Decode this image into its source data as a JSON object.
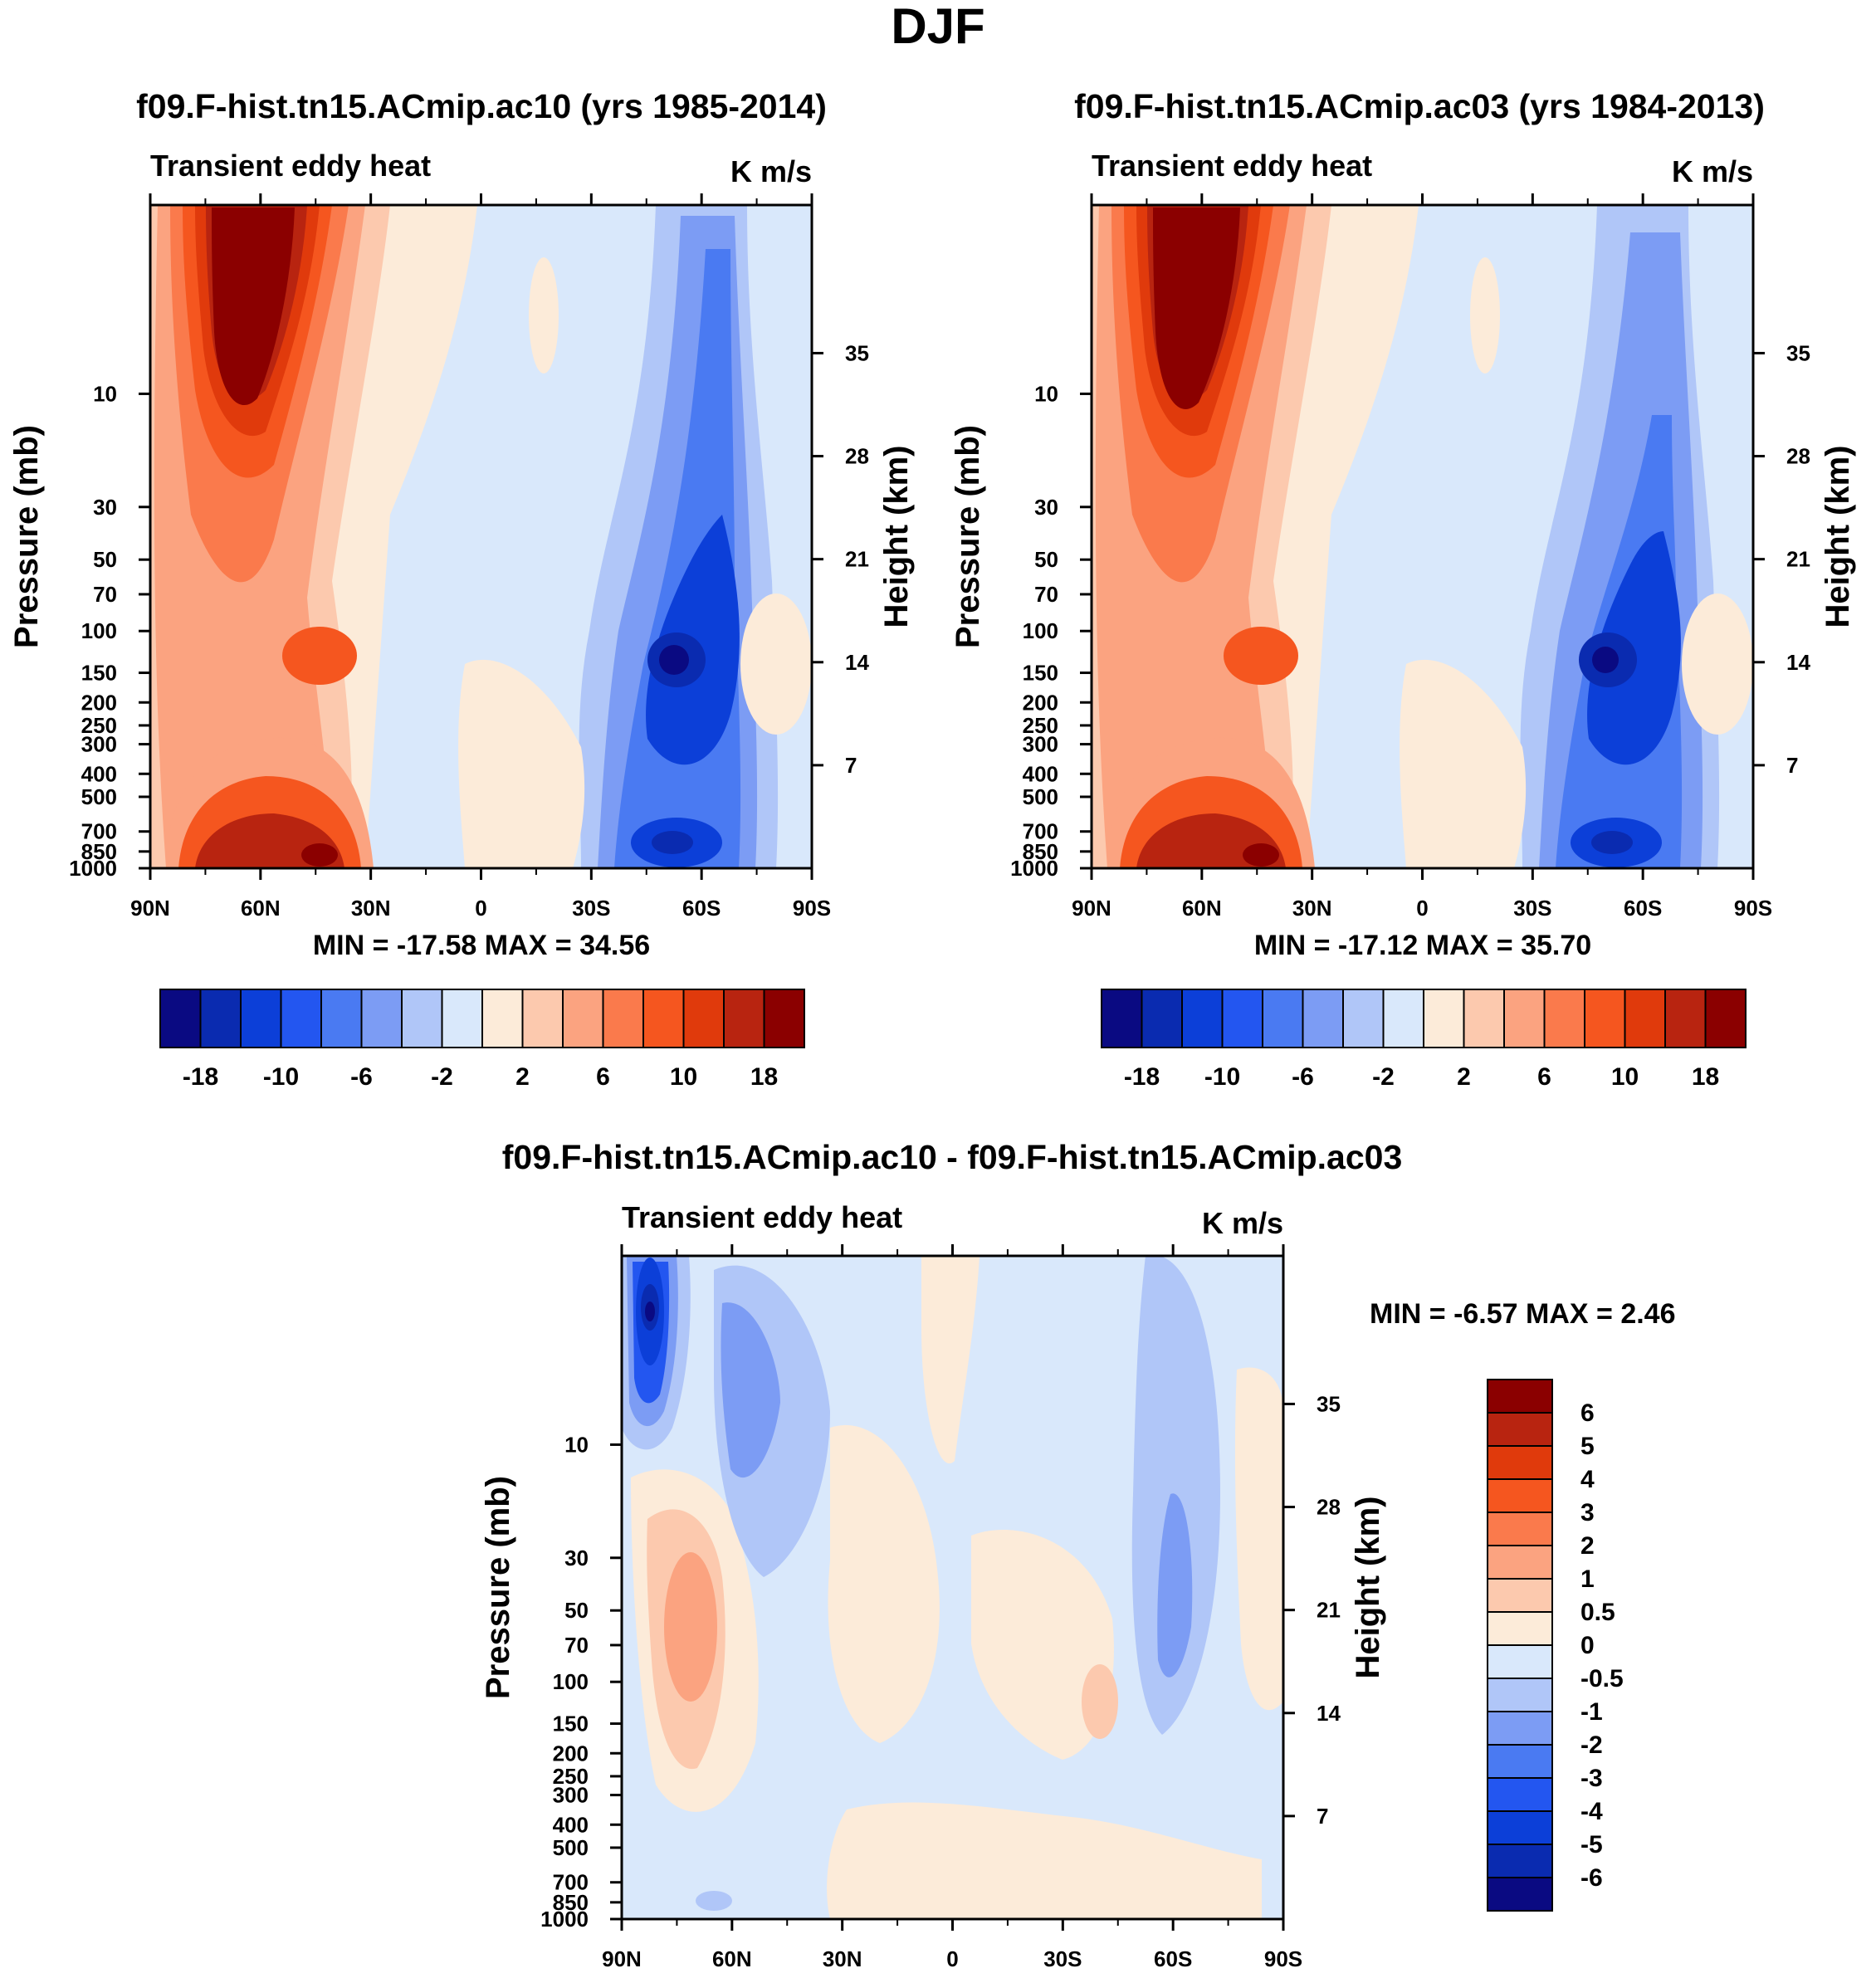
{
  "figure": {
    "title": "DJF",
    "colors": {
      "neg_scale": [
        "#0a0a82",
        "#0a2bb0",
        "#0c3fd8",
        "#2356f0",
        "#4a7af2",
        "#7c9cf4",
        "#b0c6f8",
        "#d9e8fb"
      ],
      "pos_scale": [
        "#fcebd9",
        "#fcc9ae",
        "#fba380",
        "#fa7a4c",
        "#f5561f",
        "#e03a0c",
        "#b82410",
        "#8b0000"
      ]
    }
  },
  "chart_data": [
    {
      "type": "contour",
      "title": "f09.F-hist.tn15.ACmip.ac10 (yrs 1985-2014)",
      "left_string": "Transient eddy heat",
      "right_string": "K m/s",
      "xlabel": "",
      "ylabel": "Pressure (mb)",
      "y2label": "Height (km)",
      "x_ticks": [
        "90N",
        "60N",
        "30N",
        "0",
        "30S",
        "60S",
        "90S"
      ],
      "y_ticks": [
        "10",
        "30",
        "50",
        "70",
        "100",
        "150",
        "200",
        "250",
        "300",
        "400",
        "500",
        "700",
        "850",
        "1000"
      ],
      "y2_ticks": [
        "35",
        "28",
        "21",
        "14",
        "7"
      ],
      "y_range_mb": [
        1000,
        1.6
      ],
      "x_range_deg": [
        90,
        -90
      ],
      "min": "-17.58",
      "max": "34.56",
      "minmax_text": "MIN = -17.58  MAX =  34.56",
      "colorbar_labels": [
        "-18",
        "-10",
        "-6",
        "-2",
        "2",
        "6",
        "10",
        "18"
      ],
      "features": [
        {
          "lat": 60,
          "p_top": 2,
          "p_bot": 25,
          "value": 25
        },
        {
          "lat": 45,
          "p_top": 600,
          "p_bot": 1000,
          "value": 20
        },
        {
          "lat": -50,
          "p_top": 100,
          "p_bot": 300,
          "value": -16
        },
        {
          "lat": -50,
          "p_top": 700,
          "p_bot": 1000,
          "value": -14
        }
      ]
    },
    {
      "type": "contour",
      "title": "f09.F-hist.tn15.ACmip.ac03 (yrs 1984-2013)",
      "left_string": "Transient eddy heat",
      "right_string": "K m/s",
      "xlabel": "",
      "ylabel": "Pressure (mb)",
      "y2label": "Height (km)",
      "x_ticks": [
        "90N",
        "60N",
        "30N",
        "0",
        "30S",
        "60S",
        "90S"
      ],
      "y_ticks": [
        "10",
        "30",
        "50",
        "70",
        "100",
        "150",
        "200",
        "250",
        "300",
        "400",
        "500",
        "700",
        "850",
        "1000"
      ],
      "y2_ticks": [
        "35",
        "28",
        "21",
        "14",
        "7"
      ],
      "y_range_mb": [
        1000,
        1.6
      ],
      "x_range_deg": [
        90,
        -90
      ],
      "min": "-17.12",
      "max": "35.70",
      "minmax_text": "MIN = -17.12  MAX =  35.70",
      "colorbar_labels": [
        "-18",
        "-10",
        "-6",
        "-2",
        "2",
        "6",
        "10",
        "18"
      ],
      "features": [
        {
          "lat": 60,
          "p_top": 2,
          "p_bot": 25,
          "value": 26
        },
        {
          "lat": 45,
          "p_top": 600,
          "p_bot": 1000,
          "value": 20
        },
        {
          "lat": -50,
          "p_top": 100,
          "p_bot": 300,
          "value": -16
        },
        {
          "lat": -50,
          "p_top": 700,
          "p_bot": 1000,
          "value": -14
        }
      ]
    },
    {
      "type": "contour",
      "title": "f09.F-hist.tn15.ACmip.ac10 - f09.F-hist.tn15.ACmip.ac03",
      "left_string": "Transient eddy heat",
      "right_string": "K m/s",
      "xlabel": "",
      "ylabel": "Pressure (mb)",
      "y2label": "Height (km)",
      "x_ticks": [
        "90N",
        "60N",
        "30N",
        "0",
        "30S",
        "60S",
        "90S"
      ],
      "y_ticks": [
        "10",
        "30",
        "50",
        "70",
        "100",
        "150",
        "200",
        "250",
        "300",
        "400",
        "500",
        "700",
        "850",
        "1000"
      ],
      "y2_ticks": [
        "35",
        "28",
        "21",
        "14",
        "7"
      ],
      "y_range_mb": [
        1000,
        1.6
      ],
      "x_range_deg": [
        90,
        -90
      ],
      "min": "-6.57",
      "max": "2.46",
      "minmax_text": "MIN =  -6.57  MAX =   2.46",
      "colorbar_labels": [
        "6",
        "5",
        "4",
        "3",
        "2",
        "1",
        "0.5",
        "0",
        "-0.5",
        "-1",
        "-2",
        "-3",
        "-4",
        "-5",
        "-6"
      ],
      "features": [
        {
          "lat": 82,
          "p_top": 2,
          "p_bot": 20,
          "value": -6.5
        },
        {
          "lat": 60,
          "p_top": 5,
          "p_bot": 40,
          "value": -1.5
        },
        {
          "lat": 73,
          "p_top": 50,
          "p_bot": 300,
          "value": 1.2
        },
        {
          "lat": -60,
          "p_top": 30,
          "p_bot": 200,
          "value": -1.2
        }
      ]
    }
  ]
}
